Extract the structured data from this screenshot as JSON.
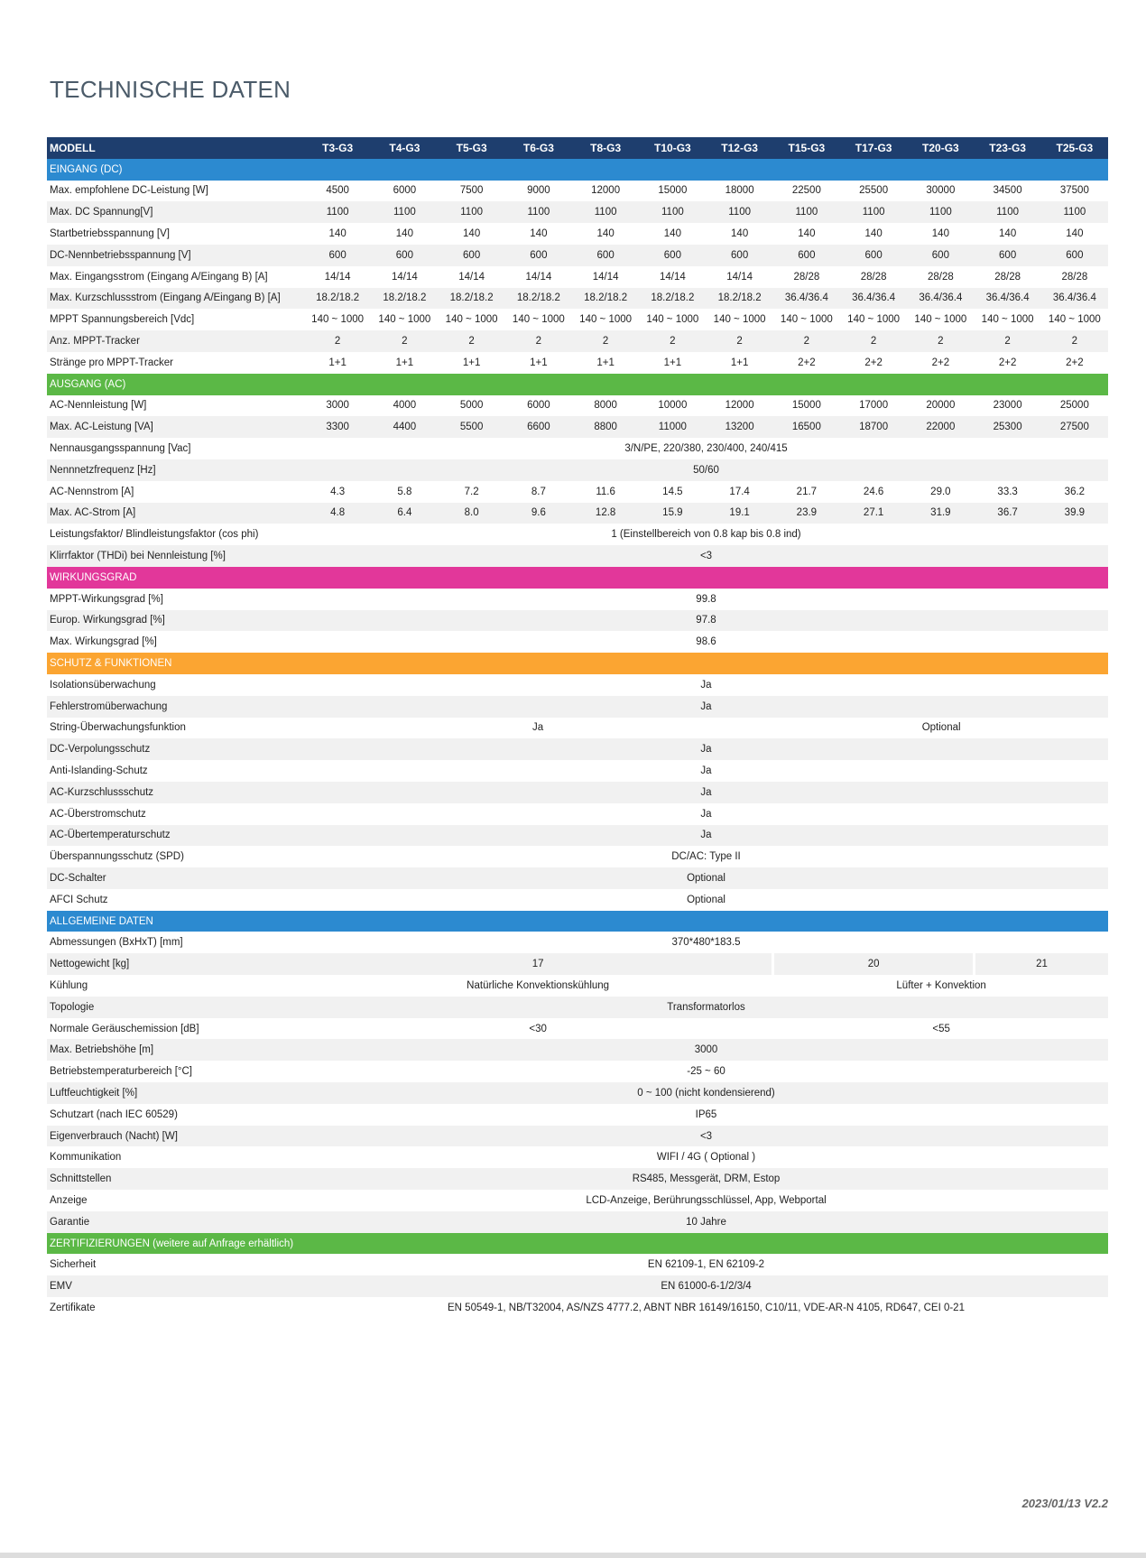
{
  "header": {
    "title": "TECHNISCHE DATEN"
  },
  "table": {
    "columns": [
      "MODELL",
      "T3-G3",
      "T4-G3",
      "T5-G3",
      "T6-G3",
      "T8-G3",
      "T10-G3",
      "T12-G3",
      "T15-G3",
      "T17-G3",
      "T20-G3",
      "T23-G3",
      "T25-G3"
    ],
    "sections": [
      {
        "title": "EINGANG (DC)",
        "color": "#2c8ad0",
        "rows": [
          {
            "label": "Max. empfohlene DC-Leistung [W]",
            "cells": [
              "4500",
              "6000",
              "7500",
              "9000",
              "12000",
              "15000",
              "18000",
              "22500",
              "25500",
              "30000",
              "34500",
              "37500"
            ]
          },
          {
            "label": "Max. DC Spannung[V]",
            "cells": [
              "1100",
              "1100",
              "1100",
              "1100",
              "1100",
              "1100",
              "1100",
              "1100",
              "1100",
              "1100",
              "1100",
              "1100"
            ]
          },
          {
            "label": "Startbetriebsspannung [V]",
            "cells": [
              "140",
              "140",
              "140",
              "140",
              "140",
              "140",
              "140",
              "140",
              "140",
              "140",
              "140",
              "140"
            ]
          },
          {
            "label": "DC-Nennbetriebsspannung [V]",
            "cells": [
              "600",
              "600",
              "600",
              "600",
              "600",
              "600",
              "600",
              "600",
              "600",
              "600",
              "600",
              "600"
            ]
          },
          {
            "label": "Max. Eingangsstrom (Eingang A/Eingang B) [A]",
            "cells": [
              "14/14",
              "14/14",
              "14/14",
              "14/14",
              "14/14",
              "14/14",
              "14/14",
              "28/28",
              "28/28",
              "28/28",
              "28/28",
              "28/28"
            ]
          },
          {
            "label": "Max. Kurzschlussstrom (Eingang A/Eingang B) [A]",
            "cells": [
              "18.2/18.2",
              "18.2/18.2",
              "18.2/18.2",
              "18.2/18.2",
              "18.2/18.2",
              "18.2/18.2",
              "18.2/18.2",
              "36.4/36.4",
              "36.4/36.4",
              "36.4/36.4",
              "36.4/36.4",
              "36.4/36.4"
            ]
          },
          {
            "label": "MPPT Spannungsbereich [Vdc]",
            "cells": [
              "140 ~ 1000",
              "140 ~ 1000",
              "140 ~ 1000",
              "140 ~ 1000",
              "140 ~ 1000",
              "140 ~ 1000",
              "140 ~ 1000",
              "140 ~ 1000",
              "140 ~ 1000",
              "140 ~ 1000",
              "140 ~ 1000",
              "140 ~ 1000"
            ]
          },
          {
            "label": "Anz. MPPT-Tracker",
            "cells": [
              "2",
              "2",
              "2",
              "2",
              "2",
              "2",
              "2",
              "2",
              "2",
              "2",
              "2",
              "2"
            ]
          },
          {
            "label": "Stränge pro MPPT-Tracker",
            "cells": [
              "1+1",
              "1+1",
              "1+1",
              "1+1",
              "1+1",
              "1+1",
              "1+1",
              "2+2",
              "2+2",
              "2+2",
              "2+2",
              "2+2"
            ]
          }
        ]
      },
      {
        "title": "AUSGANG (AC)",
        "color": "#5bb846",
        "rows": [
          {
            "label": "AC-Nennleistung [W]",
            "cells": [
              "3000",
              "4000",
              "5000",
              "6000",
              "8000",
              "10000",
              "12000",
              "15000",
              "17000",
              "20000",
              "23000",
              "25000"
            ]
          },
          {
            "label": "Max. AC-Leistung [VA]",
            "cells": [
              "3300",
              "4400",
              "5500",
              "6600",
              "8800",
              "11000",
              "13200",
              "16500",
              "18700",
              "22000",
              "25300",
              "27500"
            ]
          },
          {
            "label": "Nennausgangsspannung  [Vac]",
            "cells": [
              "3/N/PE, 220/380, 230/400, 240/415"
            ]
          },
          {
            "label": "Nennnetzfrequenz [Hz]",
            "cells": [
              "50/60"
            ]
          },
          {
            "label": "AC-Nennstrom [A]",
            "cells": [
              "4.3",
              "5.8",
              "7.2",
              "8.7",
              "11.6",
              "14.5",
              "17.4",
              "21.7",
              "24.6",
              "29.0",
              "33.3",
              "36.2"
            ]
          },
          {
            "label": "Max. AC-Strom [A]",
            "cells": [
              "4.8",
              "6.4",
              "8.0",
              "9.6",
              "12.8",
              "15.9",
              "19.1",
              "23.9",
              "27.1",
              "31.9",
              "36.7",
              "39.9"
            ]
          },
          {
            "label": "Leistungsfaktor/ Blindleistungsfaktor (cos phi)",
            "cells": [
              "1 (Einstellbereich von 0.8 kap bis 0.8 ind)"
            ]
          },
          {
            "label": "Klirrfaktor (THDi) bei Nennleistung [%]",
            "cells": [
              "<3"
            ]
          }
        ]
      },
      {
        "title": "WIRKUNGSGRAD",
        "color": "#e2379a",
        "rows": [
          {
            "label": "MPPT-Wirkungsgrad [%]",
            "cells": [
              "99.8"
            ]
          },
          {
            "label": "Europ. Wirkungsgrad [%]",
            "cells": [
              "97.8"
            ]
          },
          {
            "label": "Max. Wirkungsgrad [%]",
            "cells": [
              "98.6"
            ]
          }
        ]
      },
      {
        "title": "SCHUTZ & FUNKTIONEN",
        "color": "#fba532",
        "rows": [
          {
            "label": "Isolationsüberwachung",
            "cells": [
              "Ja"
            ]
          },
          {
            "label": "Fehlerstromüberwachung",
            "cells": [
              "Ja"
            ]
          },
          {
            "label": "String-Überwachungsfunktion",
            "cells": [
              {
                "text": "Ja",
                "span": 7
              },
              {
                "text": "Optional",
                "span": 5
              }
            ]
          },
          {
            "label": "DC-Verpolungsschutz",
            "cells": [
              "Ja"
            ]
          },
          {
            "label": "Anti-Islanding-Schutz",
            "cells": [
              "Ja"
            ]
          },
          {
            "label": "AC-Kurzschlussschutz",
            "cells": [
              "Ja"
            ]
          },
          {
            "label": "AC-Überstromschutz",
            "cells": [
              "Ja"
            ]
          },
          {
            "label": "AC-Übertemperaturschutz",
            "cells": [
              "Ja"
            ]
          },
          {
            "label": "Überspannungsschutz (SPD)",
            "cells": [
              "DC/AC: Type II"
            ]
          },
          {
            "label": "DC-Schalter",
            "cells": [
              "Optional"
            ]
          },
          {
            "label": "AFCI Schutz",
            "cells": [
              "Optional"
            ]
          }
        ]
      },
      {
        "title": "ALLGEMEINE DATEN",
        "color": "#2c8ad0",
        "rows": [
          {
            "label": "Abmessungen (BxHxT) [mm]",
            "cells": [
              "370*480*183.5"
            ]
          },
          {
            "label": "Nettogewicht [kg]",
            "cells": [
              {
                "text": "17",
                "span": 7
              },
              {
                "text": "20",
                "span": 3
              },
              {
                "text": "21",
                "span": 2
              }
            ]
          },
          {
            "label": "Kühlung",
            "cells": [
              {
                "text": "Natürliche Konvektionskühlung",
                "span": 7
              },
              {
                "text": "Lüfter + Konvektion",
                "span": 5
              }
            ]
          },
          {
            "label": "Topologie",
            "cells": [
              "Transformatorlos"
            ]
          },
          {
            "label": "Normale Geräuschemission [dB]",
            "cells": [
              {
                "text": "<30",
                "span": 7
              },
              {
                "text": "<55",
                "span": 5
              }
            ]
          },
          {
            "label": "Max. Betriebshöhe [m]",
            "cells": [
              "3000"
            ]
          },
          {
            "label": "Betriebstemperaturbereich [°C]",
            "cells": [
              "-25 ~ 60"
            ]
          },
          {
            "label": "Luftfeuchtigkeit [%]",
            "cells": [
              "0 ~ 100 (nicht kondensierend)"
            ]
          },
          {
            "label": "Schutzart (nach IEC 60529)",
            "cells": [
              "IP65"
            ]
          },
          {
            "label": "Eigenverbrauch (Nacht) [W]",
            "cells": [
              "<3"
            ]
          },
          {
            "label": "Kommunikation",
            "cells": [
              "WIFI / 4G ( Optional )"
            ]
          },
          {
            "label": "Schnittstellen",
            "cells": [
              "RS485, Messgerät, DRM, Estop"
            ]
          },
          {
            "label": "Anzeige",
            "cells": [
              "LCD-Anzeige, Berührungsschlüssel, App, Webportal"
            ]
          },
          {
            "label": "Garantie",
            "cells": [
              "10 Jahre"
            ]
          }
        ]
      },
      {
        "title": "ZERTIFIZIERUNGEN (weitere auf Anfrage erhältlich)",
        "color": "#5bb846",
        "rows": [
          {
            "label": "Sicherheit",
            "cells": [
              "EN 62109-1, EN 62109-2"
            ]
          },
          {
            "label": "EMV",
            "cells": [
              "EN 61000-6-1/2/3/4"
            ]
          },
          {
            "label": "Zertifikate",
            "cells": [
              "EN 50549-1, NB/T32004, AS/NZS 4777.2, ABNT NBR 16149/16150, C10/11, VDE-AR-N 4105, RD647, CEI 0-21"
            ]
          }
        ]
      }
    ]
  },
  "footer": {
    "version": "2023/01/13 V2.2"
  }
}
